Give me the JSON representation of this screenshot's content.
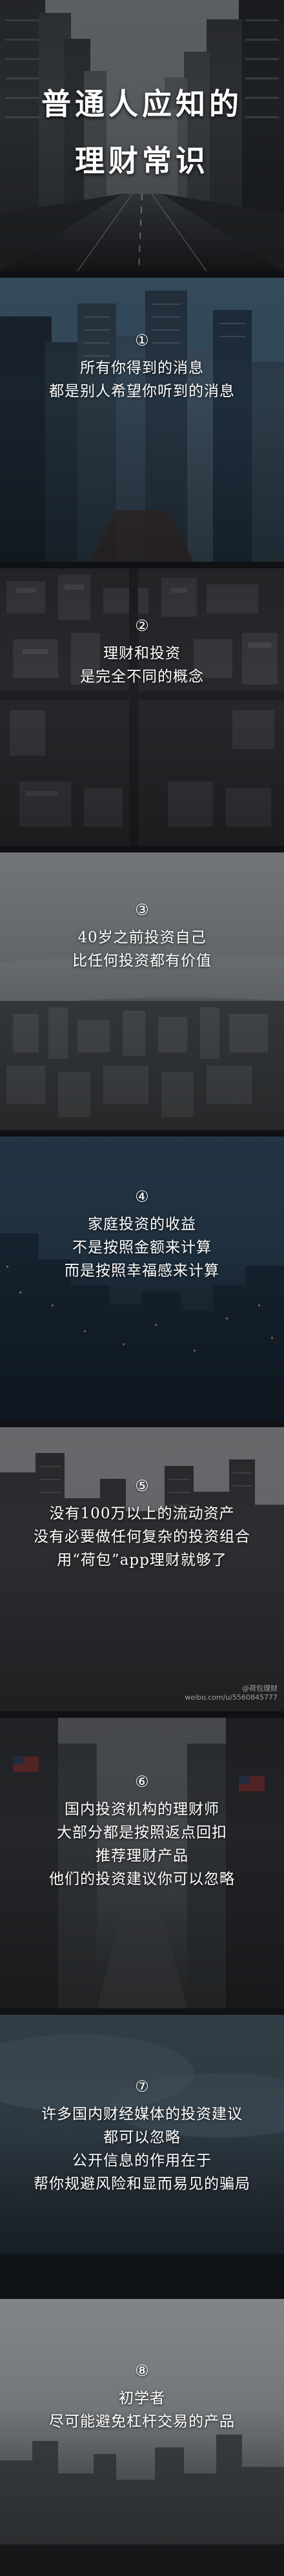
{
  "title": {
    "line1": "普通人应知的",
    "line2": "理财常识"
  },
  "sections": [
    {
      "number": "①",
      "lines": [
        "所有你得到的消息",
        "都是别人希望你听到的消息"
      ]
    },
    {
      "number": "②",
      "lines": [
        "理财和投资",
        "是完全不同的概念"
      ]
    },
    {
      "number": "③",
      "lines": [
        "40岁之前投资自己",
        "比任何投资都有价值"
      ]
    },
    {
      "number": "④",
      "lines": [
        "家庭投资的收益",
        "不是按照金额来计算",
        "而是按照幸福感来计算"
      ]
    },
    {
      "number": "⑤",
      "lines": [
        "没有100万以上的流动资产",
        "没有必要做任何复杂的投资组合",
        "用“荷包”app理财就够了"
      ]
    },
    {
      "number": "⑥",
      "lines": [
        "国内投资机构的理财师",
        "大部分都是按照返点回扣",
        "推荐理财产品",
        "他们的投资建议你可以忽略"
      ]
    },
    {
      "number": "⑦",
      "lines": [
        "许多国内财经媒体的投资建议",
        "都可以忽略",
        "公开信息的作用在于",
        "帮你规避风险和显而易见的骗局"
      ]
    },
    {
      "number": "⑧",
      "lines": [
        "初学者",
        "尽可能避免杠杆交易的产品"
      ]
    }
  ],
  "watermark": {
    "line1": "@荷包理财",
    "line2": "weibo.com/u/5560845777"
  }
}
